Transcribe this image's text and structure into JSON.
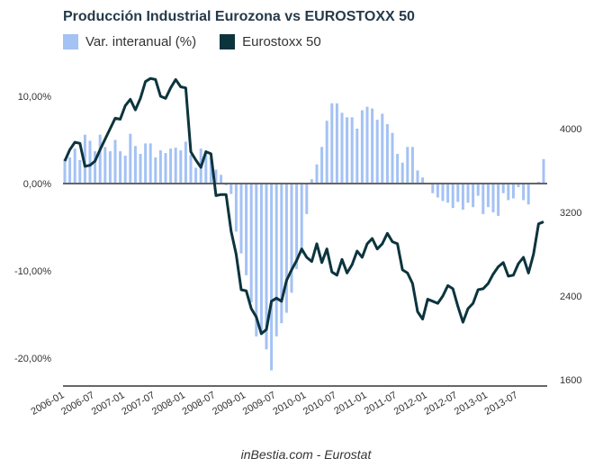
{
  "chart_data": {
    "type": "bar+line",
    "title": "Producción Industrial Eurozona vs EUROSTOXX 50",
    "source": "inBestia.com - Eurostat",
    "legend_position": "top-left",
    "series": [
      {
        "name": "Var. interanual (%)",
        "type": "bar",
        "axis": "left",
        "color": "#a4c2f4",
        "values": [
          2.8,
          3.0,
          4.0,
          2.7,
          5.6,
          4.9,
          3.7,
          5.6,
          4.2,
          3.7,
          5.0,
          3.7,
          3.2,
          5.7,
          4.3,
          3.4,
          4.6,
          4.6,
          3.0,
          3.8,
          3.5,
          4.0,
          4.1,
          3.8,
          4.8,
          3.3,
          1.8,
          4.0,
          3.7,
          3.0,
          1.6,
          1.0,
          -0.2,
          -1.2,
          -5.5,
          -8.0,
          -10.5,
          -13.6,
          -17.5,
          -17.2,
          -19.0,
          -21.4,
          -17.5,
          -16.0,
          -14.8,
          -12.5,
          -9.8,
          -8.0,
          -3.5,
          0.5,
          2.2,
          4.2,
          7.2,
          9.2,
          9.2,
          8.1,
          7.6,
          7.6,
          6.3,
          8.4,
          8.8,
          8.6,
          7.3,
          8.0,
          6.8,
          5.8,
          3.4,
          2.4,
          4.2,
          4.2,
          1.5,
          0.7,
          -0.1,
          -1.1,
          -1.6,
          -2.0,
          -2.2,
          -2.8,
          -2.1,
          -3.0,
          -2.2,
          -2.7,
          -1.4,
          -3.5,
          -2.7,
          -3.3,
          -3.7,
          -1.1,
          -1.9,
          -1.7,
          -0.4,
          -1.9,
          -2.4,
          -0.1,
          0.2,
          2.8
        ],
        "ylim": [
          -23,
          13
        ],
        "ticks": [
          "10,00%",
          "0,00%",
          "-10,00%",
          "-20,00%"
        ]
      },
      {
        "name": "Eurostoxx 50",
        "type": "line",
        "axis": "right",
        "color": "#0c343d",
        "values": [
          3690,
          3800,
          3870,
          3860,
          3640,
          3650,
          3690,
          3800,
          3900,
          4000,
          4100,
          4090,
          4220,
          4280,
          4180,
          4290,
          4450,
          4480,
          4470,
          4310,
          4290,
          4390,
          4470,
          4400,
          4390,
          3780,
          3700,
          3630,
          3780,
          3760,
          3360,
          3370,
          3370,
          3020,
          2800,
          2460,
          2450,
          2280,
          2200,
          2040,
          2080,
          2350,
          2380,
          2350,
          2550,
          2650,
          2740,
          2850,
          2770,
          2730,
          2900,
          2720,
          2850,
          2630,
          2600,
          2750,
          2620,
          2700,
          2830,
          2770,
          2900,
          2950,
          2850,
          2900,
          3000,
          2920,
          2900,
          2650,
          2620,
          2520,
          2250,
          2180,
          2370,
          2350,
          2330,
          2400,
          2500,
          2470,
          2300,
          2150,
          2280,
          2330,
          2460,
          2470,
          2520,
          2610,
          2680,
          2720,
          2590,
          2600,
          2710,
          2770,
          2620,
          2800,
          3090,
          3110
        ],
        "ylim": [
          1600,
          4600
        ],
        "ticks": [
          "4000",
          "3200",
          "2400",
          "1600"
        ]
      }
    ],
    "x_ticks": [
      "2006-01",
      "2006-07",
      "2007-01",
      "2007-07",
      "2008-01",
      "2008-07",
      "2009-01",
      "2009-07",
      "2010-01",
      "2010-07",
      "2011-01",
      "2011-07",
      "2012-01",
      "2012-07",
      "2013-01",
      "2013-07"
    ],
    "x_range": [
      "2006-01",
      "2013-12"
    ],
    "grid": false
  },
  "title": "Producción Industrial Eurozona vs EUROSTOXX 50",
  "legend": [
    {
      "label": "Var. interanual (%)",
      "color": "#a4c2f4"
    },
    {
      "label": "Eurostoxx 50",
      "color": "#0c343d"
    }
  ],
  "source": "inBestia.com - Eurostat"
}
